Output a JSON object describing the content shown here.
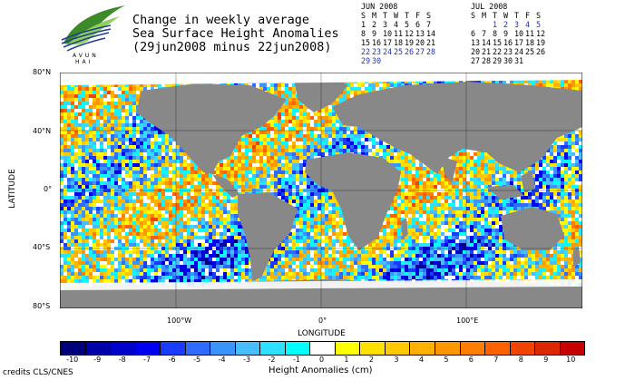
{
  "logo": {
    "text_line1": "AVUN",
    "text_line2": "HAI"
  },
  "title": {
    "line1": "Change in weekly average",
    "line2": "Sea Surface Height Anomalies",
    "line3": "(29jun2008 minus 22jun2008)"
  },
  "calendars": [
    {
      "month": "JUN 2008",
      "days_header": [
        "S",
        "M",
        "T",
        "W",
        "T",
        "F",
        "S"
      ],
      "weeks": [
        [
          "1",
          "2",
          "3",
          "4",
          "5",
          "6",
          "7"
        ],
        [
          "8",
          "9",
          "10",
          "11",
          "12",
          "13",
          "14"
        ],
        [
          "15",
          "16",
          "17",
          "18",
          "19",
          "20",
          "21"
        ],
        [
          "22",
          "23",
          "24",
          "25",
          "26",
          "27",
          "28"
        ],
        [
          "29",
          "30",
          "",
          "",
          "",
          "",
          ""
        ]
      ],
      "highlight_weeks": [
        3,
        4
      ]
    },
    {
      "month": "JUL 2008",
      "days_header": [
        "S",
        "M",
        "T",
        "W",
        "T",
        "F",
        "S"
      ],
      "weeks": [
        [
          "",
          "",
          "1",
          "2",
          "3",
          "4",
          "5"
        ],
        [
          "6",
          "7",
          "8",
          "9",
          "10",
          "11",
          "12"
        ],
        [
          "13",
          "14",
          "15",
          "16",
          "17",
          "18",
          "19"
        ],
        [
          "20",
          "21",
          "22",
          "23",
          "24",
          "25",
          "26"
        ],
        [
          "27",
          "28",
          "29",
          "30",
          "31",
          "",
          ""
        ]
      ],
      "highlight_weeks": [
        0
      ]
    }
  ],
  "map": {
    "y_axis_title": "LATITUDE",
    "x_axis_title": "LONGITUDE",
    "lat_labels": [
      "80°N",
      "40°N",
      "0°",
      "40°S",
      "80°S"
    ],
    "lon_labels": [
      "100°W",
      "0°",
      "100°E"
    ]
  },
  "colorbar": {
    "title": "Height Anomalies (cm)",
    "labels": [
      "-10",
      "-9",
      "-8",
      "-7",
      "-6",
      "-5",
      "-4",
      "-3",
      "-2",
      "-1",
      "0",
      "1",
      "2",
      "3",
      "4",
      "5",
      "6",
      "7",
      "8",
      "9",
      "10"
    ],
    "colors": [
      "#00007a",
      "#0000a8",
      "#0000cc",
      "#0000f0",
      "#1a3cff",
      "#2e6bff",
      "#3c95ff",
      "#48bdff",
      "#30e0ff",
      "#00ffff",
      "#ffffff",
      "#ffff00",
      "#ffe000",
      "#ffc800",
      "#ffb000",
      "#ff9800",
      "#ff7e00",
      "#ff6200",
      "#f04400",
      "#dc2800",
      "#c80000"
    ]
  },
  "credits": "credits CLS/CNES"
}
